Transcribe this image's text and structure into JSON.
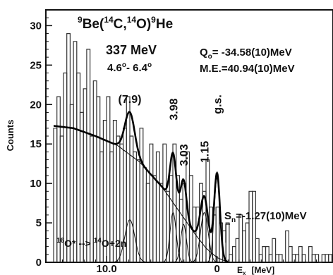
{
  "chart_data": {
    "type": "histogram",
    "reaction": {
      "target_mass": "9",
      "target": "Be",
      "proj_mass": "14",
      "proj": "C",
      "ejectile_mass": "14",
      "ejectile": "O",
      "residual_mass": "9",
      "residual": "He"
    },
    "energy": "337 MeV",
    "angles": {
      "lo": "4.6",
      "hi": "6.4",
      "dash": "- "
    },
    "q_value": {
      "prefix": "Q",
      "sub": "o",
      "text": "= -34.58(10)MeV"
    },
    "mass_excess": "M.E.=40.94(10)MeV",
    "sn": {
      "prefix": "S",
      "sub": "n",
      "text": "=-1.27(10)MeV"
    },
    "breakup": {
      "a_mass": "16",
      "a": "O* --> ",
      "b_mass": "14",
      "b": "O+2n"
    },
    "ylabel": "Counts",
    "xlabel": {
      "sym": "E",
      "sub": "x",
      "unit": "[MeV]"
    },
    "xlim": [
      15.5,
      -10.5
    ],
    "ylim": [
      0,
      32
    ],
    "xticks": [
      {
        "v": 10,
        "label": "10.0"
      },
      {
        "v": 0,
        "label": "0"
      }
    ],
    "yticks": [
      0,
      5,
      10,
      15,
      20,
      25,
      30
    ],
    "peaks": [
      {
        "label": "(7.9)",
        "x": 7.9,
        "y": 20.2
      },
      {
        "label": "3.98",
        "x": 3.98,
        "y": 18.0
      },
      {
        "label": "3.03",
        "x": 3.03,
        "y": 12.2
      },
      {
        "label": "1.15",
        "x": 1.15,
        "y": 12.6
      },
      {
        "label": "g.s.",
        "x": 0.0,
        "y": 18.8
      }
    ],
    "fit": {
      "background": {
        "x": [
          14.8,
          13,
          11,
          9,
          7,
          5,
          3,
          2,
          1,
          0,
          -1
        ],
        "y": [
          17.3,
          17,
          16,
          14.8,
          12.7,
          9.6,
          5.6,
          3.6,
          1.8,
          0.6,
          0
        ]
      },
      "peak_components": [
        {
          "center": 7.9,
          "amplitude": 5.4,
          "sigma": 0.45
        },
        {
          "center": 3.98,
          "amplitude": 6.3,
          "sigma": 0.28
        },
        {
          "center": 3.03,
          "amplitude": 4.8,
          "sigma": 0.26
        },
        {
          "center": 1.15,
          "amplitude": 6.3,
          "sigma": 0.35
        },
        {
          "center": 0.0,
          "amplitude": 10.7,
          "sigma": 0.26
        }
      ]
    },
    "histogram": {
      "bin_start": 14.8,
      "bin_width": -0.3,
      "counts": [
        17,
        21,
        16,
        24,
        29,
        20,
        28,
        24,
        19,
        22,
        27,
        16,
        23,
        21,
        14,
        18,
        21,
        14,
        18,
        16,
        15,
        17,
        21,
        16,
        14,
        13,
        17,
        12,
        10,
        15,
        11,
        14,
        10,
        15,
        9,
        11,
        15,
        11,
        8,
        10,
        14,
        11,
        7,
        7,
        10,
        9,
        13,
        7,
        6,
        7,
        5,
        4,
        5,
        1,
        2,
        3,
        6,
        4,
        5,
        9,
        9,
        3,
        1,
        2,
        2,
        1,
        3,
        1,
        1,
        0,
        4,
        2,
        1,
        1,
        2,
        1,
        0,
        2,
        1,
        1,
        0,
        1,
        1,
        1,
        0,
        1
      ]
    }
  }
}
